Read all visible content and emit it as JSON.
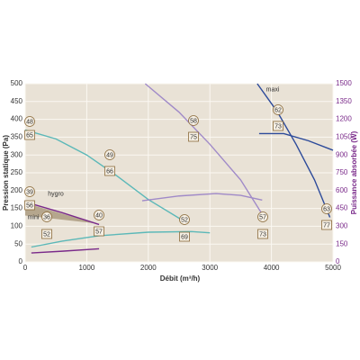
{
  "chart_data": {
    "type": "line",
    "ylabel": "Pression statique (Pa)",
    "y2label": "Puissance absorbée (W)",
    "xlabel": "Débit (m³/h)",
    "xlim": [
      0,
      5000
    ],
    "xticks": [
      0,
      1000,
      2000,
      3000,
      4000,
      5000
    ],
    "ylim": [
      0,
      500
    ],
    "yticks": [
      0,
      50,
      100,
      150,
      200,
      250,
      300,
      350,
      400,
      450,
      500
    ],
    "y2lim": [
      0,
      1500
    ],
    "y2ticks": [
      0,
      150,
      300,
      450,
      600,
      750,
      900,
      1050,
      1200,
      1350,
      1500
    ],
    "grid": true,
    "band": {
      "color": "#a8977a",
      "x": [
        0,
        1150
      ],
      "upper": [
        165,
        108
      ],
      "lower": [
        130,
        108
      ]
    },
    "series": [
      {
        "color": "#5bb8b8",
        "x": [
          0,
          500,
          1000,
          1500,
          2000,
          2600
        ],
        "values": [
          370,
          345,
          300,
          240,
          175,
          112
        ]
      },
      {
        "color": "#7a2a8a",
        "x": [
          0,
          600,
          1200
        ],
        "values": [
          168,
          138,
          105
        ]
      },
      {
        "color": "#a08ac8",
        "x": [
          1950,
          2500,
          3000,
          3500,
          3900
        ],
        "values": [
          500,
          420,
          330,
          230,
          120
        ]
      },
      {
        "color": "#2c4a9a",
        "x": [
          3770,
          4100,
          4400,
          4700,
          4950
        ],
        "values": [
          500,
          420,
          330,
          230,
          125
        ]
      },
      {
        "color": "#5bb8b8",
        "axis": "y2",
        "x": [
          100,
          600,
          1200,
          2000,
          2700,
          3000
        ],
        "values": [
          125,
          175,
          220,
          250,
          255,
          245
        ]
      },
      {
        "color": "#7a2a8a",
        "axis": "y2",
        "x": [
          100,
          600,
          1200
        ],
        "values": [
          75,
          90,
          110
        ]
      },
      {
        "color": "#a08ac8",
        "axis": "y2",
        "x": [
          1900,
          2500,
          3100,
          3500,
          3850
        ],
        "values": [
          515,
          555,
          575,
          560,
          520
        ]
      },
      {
        "color": "#2c4a9a",
        "axis": "y2",
        "x": [
          3800,
          4200,
          4600,
          5000
        ],
        "values": [
          1080,
          1080,
          1020,
          940
        ]
      }
    ],
    "annotations": [
      {
        "text": "48",
        "shape": "circle"
      },
      {
        "text": "65",
        "shape": "box"
      },
      {
        "text": "49",
        "shape": "circle"
      },
      {
        "text": "66",
        "shape": "box"
      },
      {
        "text": "52",
        "shape": "circle"
      },
      {
        "text": "69",
        "shape": "box"
      },
      {
        "text": "39",
        "shape": "circle"
      },
      {
        "text": "hygro",
        "shape": "text"
      },
      {
        "text": "56",
        "shape": "box"
      },
      {
        "text": "mini",
        "shape": "text"
      },
      {
        "text": "36",
        "shape": "circle"
      },
      {
        "text": "40",
        "shape": "circle"
      },
      {
        "text": "57",
        "shape": "box"
      },
      {
        "text": "52",
        "shape": "box"
      },
      {
        "text": "58",
        "shape": "circle"
      },
      {
        "text": "75",
        "shape": "box"
      },
      {
        "text": "57",
        "shape": "circle"
      },
      {
        "text": "73",
        "shape": "box"
      },
      {
        "text": "maxi",
        "shape": "text"
      },
      {
        "text": "62",
        "shape": "circle"
      },
      {
        "text": "73",
        "shape": "box"
      },
      {
        "text": "63",
        "shape": "circle"
      },
      {
        "text": "77",
        "shape": "box"
      }
    ]
  }
}
